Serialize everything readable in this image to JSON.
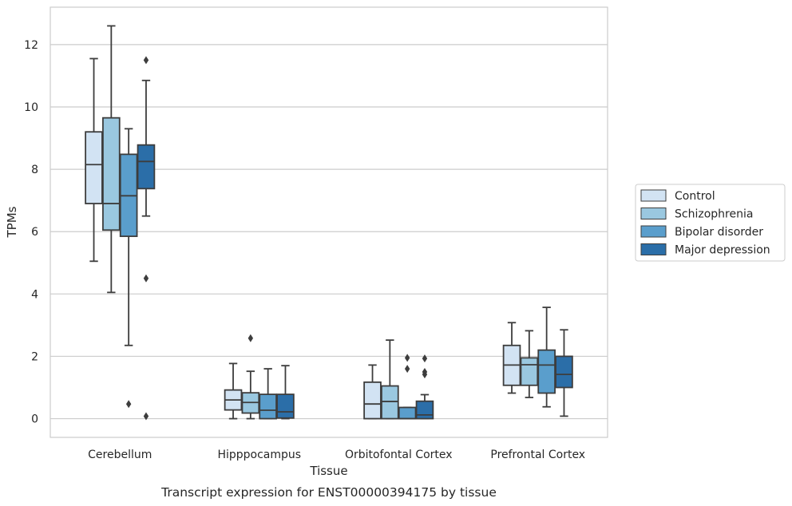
{
  "chart_data": {
    "type": "box",
    "caption": "Transcript expression for ENST00000394175 by tissue",
    "xlabel": "Tissue",
    "ylabel": "TPMs",
    "ylim": [
      -0.6,
      13.2
    ],
    "yticks": [
      0,
      2,
      4,
      6,
      8,
      10,
      12
    ],
    "grid": true,
    "legend_position": "right",
    "categories": [
      "Cerebellum",
      "Hipppocampus",
      "Orbitofontal Cortex",
      "Prefrontal Cortex"
    ],
    "series": [
      {
        "name": "Control",
        "color": "#d2e3f3",
        "boxes": [
          {
            "whislo": 5.05,
            "q1": 6.9,
            "med": 8.15,
            "q3": 9.2,
            "whishi": 11.55,
            "fliers": []
          },
          {
            "whislo": 0.0,
            "q1": 0.28,
            "med": 0.6,
            "q3": 0.92,
            "whishi": 1.77,
            "fliers": []
          },
          {
            "whislo": 0.0,
            "q1": 0.0,
            "med": 0.47,
            "q3": 1.17,
            "whishi": 1.72,
            "fliers": []
          },
          {
            "whislo": 0.82,
            "q1": 1.07,
            "med": 1.72,
            "q3": 2.35,
            "whishi": 3.08,
            "fliers": []
          }
        ]
      },
      {
        "name": "Schizophrenia",
        "color": "#9ac8e0",
        "boxes": [
          {
            "whislo": 4.05,
            "q1": 6.05,
            "med": 6.9,
            "q3": 9.65,
            "whishi": 12.6,
            "fliers": []
          },
          {
            "whislo": 0.0,
            "q1": 0.18,
            "med": 0.52,
            "q3": 0.83,
            "whishi": 1.52,
            "fliers": [
              2.58
            ]
          },
          {
            "whislo": 0.0,
            "q1": 0.0,
            "med": 0.55,
            "q3": 1.05,
            "whishi": 2.52,
            "fliers": []
          },
          {
            "whislo": 0.68,
            "q1": 1.07,
            "med": 1.73,
            "q3": 1.95,
            "whishi": 2.82,
            "fliers": []
          }
        ]
      },
      {
        "name": "Bipolar disorder",
        "color": "#5a9ecc",
        "boxes": [
          {
            "whislo": 2.35,
            "q1": 5.85,
            "med": 7.15,
            "q3": 8.48,
            "whishi": 9.3,
            "fliers": [
              0.47
            ]
          },
          {
            "whislo": 0.0,
            "q1": 0.0,
            "med": 0.27,
            "q3": 0.78,
            "whishi": 1.6,
            "fliers": []
          },
          {
            "whislo": 0.0,
            "q1": 0.0,
            "med": 0.0,
            "q3": 0.36,
            "whishi": 0.36,
            "fliers": [
              1.6,
              1.95
            ]
          },
          {
            "whislo": 0.38,
            "q1": 0.82,
            "med": 1.72,
            "q3": 2.2,
            "whishi": 3.57,
            "fliers": []
          }
        ]
      },
      {
        "name": "Major depression",
        "color": "#2b6ea8",
        "boxes": [
          {
            "whislo": 6.5,
            "q1": 7.38,
            "med": 8.25,
            "q3": 8.78,
            "whishi": 10.85,
            "fliers": [
              11.5,
              4.5,
              0.08
            ]
          },
          {
            "whislo": 0.0,
            "q1": 0.02,
            "med": 0.22,
            "q3": 0.78,
            "whishi": 1.7,
            "fliers": []
          },
          {
            "whislo": 0.0,
            "q1": 0.0,
            "med": 0.12,
            "q3": 0.56,
            "whishi": 0.77,
            "fliers": [
              1.42,
              1.5,
              1.93
            ]
          },
          {
            "whislo": 0.08,
            "q1": 1.0,
            "med": 1.42,
            "q3": 2.0,
            "whishi": 2.85,
            "fliers": []
          }
        ]
      }
    ]
  }
}
